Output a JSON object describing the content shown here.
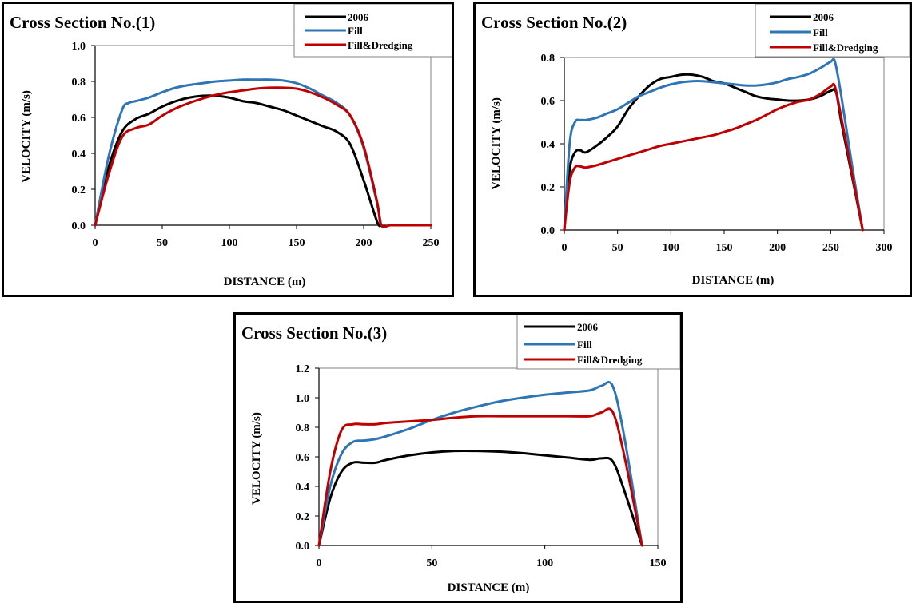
{
  "chart_data": [
    {
      "type": "line",
      "title": "Cross Section No.(1)",
      "xlabel": "DISTANCE  (m)",
      "ylabel": "VELOCITY (m/s)",
      "xlim": [
        0,
        250
      ],
      "ylim": [
        0,
        1.0
      ],
      "xticks": [
        0,
        50,
        100,
        150,
        200,
        250
      ],
      "yticks": [
        0.0,
        0.2,
        0.4,
        0.6,
        0.8,
        1.0
      ],
      "xtick_labels": [
        "0",
        "50",
        "100",
        "150",
        "200",
        "250"
      ],
      "ytick_labels": [
        "0.0",
        "0.2",
        "0.4",
        "0.6",
        "0.8",
        "1.0"
      ],
      "grid": false,
      "legend_position": "top-right",
      "series": [
        {
          "name": "2006",
          "color": "#000000",
          "x": [
            0,
            10,
            20,
            30,
            40,
            50,
            60,
            70,
            80,
            90,
            100,
            110,
            120,
            130,
            140,
            150,
            160,
            170,
            180,
            190,
            200,
            210,
            213
          ],
          "y": [
            0,
            0.32,
            0.52,
            0.59,
            0.62,
            0.66,
            0.69,
            0.71,
            0.72,
            0.72,
            0.71,
            0.69,
            0.68,
            0.66,
            0.64,
            0.61,
            0.58,
            0.55,
            0.52,
            0.45,
            0.25,
            0.02,
            0
          ]
        },
        {
          "name": "Fill",
          "color": "#2e75b6",
          "x": [
            0,
            10,
            20,
            25,
            30,
            40,
            50,
            60,
            70,
            80,
            90,
            100,
            110,
            120,
            130,
            140,
            150,
            160,
            170,
            180,
            190,
            200,
            210,
            213
          ],
          "y": [
            0,
            0.38,
            0.64,
            0.68,
            0.69,
            0.71,
            0.74,
            0.765,
            0.78,
            0.79,
            0.8,
            0.805,
            0.81,
            0.81,
            0.81,
            0.805,
            0.79,
            0.76,
            0.72,
            0.68,
            0.61,
            0.43,
            0.12,
            0
          ]
        },
        {
          "name": "Fill&Dredging",
          "color": "#c00000",
          "x": [
            0,
            10,
            20,
            30,
            40,
            50,
            60,
            70,
            80,
            90,
            100,
            110,
            120,
            130,
            140,
            150,
            160,
            170,
            180,
            190,
            200,
            210,
            213,
            220,
            230,
            250
          ],
          "y": [
            0,
            0.28,
            0.49,
            0.54,
            0.56,
            0.61,
            0.65,
            0.68,
            0.705,
            0.725,
            0.74,
            0.75,
            0.76,
            0.765,
            0.765,
            0.76,
            0.74,
            0.71,
            0.67,
            0.61,
            0.44,
            0.13,
            0,
            0,
            0,
            0
          ]
        }
      ]
    },
    {
      "type": "line",
      "title": "Cross Section No.(2)",
      "xlabel": "DISTANCE  (m)",
      "ylabel": "VELOCITY (m/s)",
      "xlim": [
        0,
        300
      ],
      "ylim": [
        0,
        0.8
      ],
      "xticks": [
        0,
        50,
        100,
        150,
        200,
        250,
        300
      ],
      "yticks": [
        0.0,
        0.2,
        0.4,
        0.6,
        0.8
      ],
      "xtick_labels": [
        "0",
        "50",
        "100",
        "150",
        "200",
        "250",
        "300"
      ],
      "ytick_labels": [
        "0.0",
        "0.2",
        "0.4",
        "0.6",
        "0.8"
      ],
      "grid": false,
      "legend_position": "top-right",
      "series": [
        {
          "name": "2006",
          "color": "#000000",
          "x": [
            0,
            5,
            10,
            15,
            20,
            30,
            40,
            50,
            60,
            70,
            80,
            90,
            100,
            110,
            120,
            130,
            140,
            150,
            160,
            170,
            180,
            190,
            200,
            210,
            220,
            230,
            240,
            250,
            255,
            260,
            270,
            280
          ],
          "y": [
            0,
            0.28,
            0.36,
            0.37,
            0.36,
            0.39,
            0.43,
            0.48,
            0.56,
            0.62,
            0.67,
            0.7,
            0.71,
            0.72,
            0.72,
            0.71,
            0.69,
            0.68,
            0.66,
            0.64,
            0.62,
            0.61,
            0.605,
            0.6,
            0.6,
            0.605,
            0.62,
            0.645,
            0.64,
            0.5,
            0.25,
            0
          ]
        },
        {
          "name": "Fill",
          "color": "#2e75b6",
          "x": [
            0,
            5,
            10,
            15,
            20,
            30,
            40,
            50,
            60,
            70,
            80,
            90,
            100,
            110,
            120,
            130,
            140,
            150,
            160,
            170,
            180,
            190,
            200,
            210,
            220,
            230,
            240,
            250,
            254,
            260,
            270,
            280
          ],
          "y": [
            0,
            0.4,
            0.5,
            0.51,
            0.51,
            0.52,
            0.54,
            0.56,
            0.59,
            0.62,
            0.64,
            0.66,
            0.675,
            0.685,
            0.69,
            0.69,
            0.685,
            0.68,
            0.675,
            0.67,
            0.67,
            0.675,
            0.685,
            0.7,
            0.71,
            0.725,
            0.75,
            0.78,
            0.78,
            0.62,
            0.3,
            0
          ]
        },
        {
          "name": "Fill&Dredging",
          "color": "#c00000",
          "x": [
            0,
            5,
            10,
            15,
            20,
            30,
            40,
            50,
            60,
            70,
            80,
            90,
            100,
            110,
            120,
            130,
            140,
            150,
            160,
            170,
            180,
            190,
            200,
            210,
            220,
            230,
            240,
            250,
            254,
            260,
            270,
            280
          ],
          "y": [
            0,
            0.22,
            0.29,
            0.295,
            0.29,
            0.3,
            0.315,
            0.33,
            0.345,
            0.36,
            0.375,
            0.39,
            0.4,
            0.41,
            0.42,
            0.43,
            0.44,
            0.455,
            0.47,
            0.49,
            0.51,
            0.535,
            0.56,
            0.58,
            0.595,
            0.605,
            0.63,
            0.665,
            0.665,
            0.52,
            0.26,
            0
          ]
        }
      ]
    },
    {
      "type": "line",
      "title": "Cross Section No.(3)",
      "xlabel": "DISTANCE  (m)",
      "ylabel": "VELOCITY (m/s)",
      "xlim": [
        0,
        150
      ],
      "ylim": [
        0,
        1.2
      ],
      "xticks": [
        0,
        50,
        100,
        150
      ],
      "yticks": [
        0.0,
        0.2,
        0.4,
        0.6,
        0.8,
        1.0,
        1.2
      ],
      "xtick_labels": [
        "0",
        "50",
        "100",
        "150"
      ],
      "ytick_labels": [
        "0.0",
        "0.2",
        "0.4",
        "0.6",
        "0.8",
        "1.0",
        "1.2"
      ],
      "grid": false,
      "legend_position": "top-right",
      "series": [
        {
          "name": "2006",
          "color": "#000000",
          "x": [
            0,
            5,
            10,
            15,
            20,
            25,
            30,
            40,
            50,
            60,
            70,
            80,
            90,
            100,
            110,
            120,
            125,
            130,
            135,
            143
          ],
          "y": [
            0,
            0.32,
            0.5,
            0.56,
            0.56,
            0.56,
            0.58,
            0.61,
            0.63,
            0.64,
            0.64,
            0.635,
            0.625,
            0.61,
            0.595,
            0.58,
            0.59,
            0.57,
            0.38,
            0
          ]
        },
        {
          "name": "Fill",
          "color": "#2e75b6",
          "x": [
            0,
            5,
            10,
            15,
            20,
            25,
            30,
            40,
            50,
            60,
            70,
            80,
            90,
            100,
            110,
            120,
            125,
            130,
            135,
            143
          ],
          "y": [
            0,
            0.4,
            0.62,
            0.7,
            0.71,
            0.72,
            0.74,
            0.79,
            0.85,
            0.9,
            0.94,
            0.975,
            1.0,
            1.02,
            1.035,
            1.05,
            1.08,
            1.08,
            0.75,
            0
          ]
        },
        {
          "name": "Fill&Dredging",
          "color": "#c00000",
          "x": [
            0,
            5,
            10,
            15,
            20,
            25,
            30,
            40,
            50,
            60,
            70,
            80,
            90,
            100,
            110,
            120,
            125,
            130,
            135,
            143
          ],
          "y": [
            0,
            0.5,
            0.78,
            0.82,
            0.82,
            0.82,
            0.83,
            0.84,
            0.85,
            0.865,
            0.875,
            0.875,
            0.875,
            0.875,
            0.875,
            0.875,
            0.9,
            0.905,
            0.62,
            0
          ]
        }
      ]
    }
  ]
}
